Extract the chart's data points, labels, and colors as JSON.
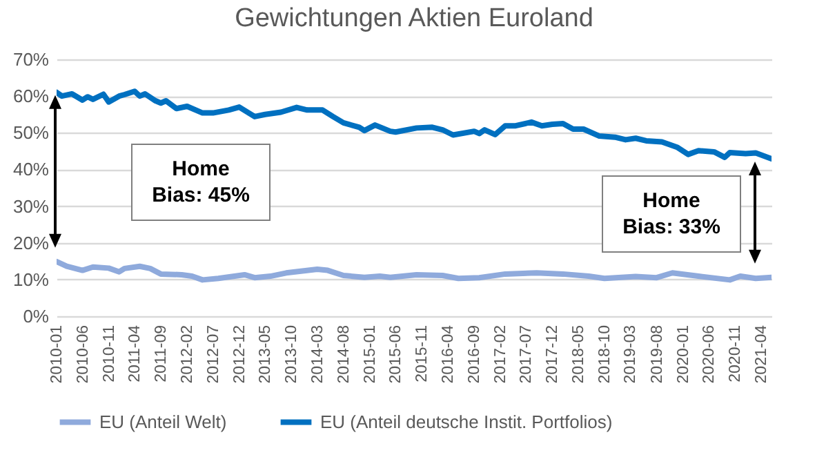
{
  "chart_data": {
    "type": "line",
    "title": "Gewichtungen Aktien Euroland",
    "xlim": [
      "2010-01",
      "2021-06"
    ],
    "xticks": [
      "2010-01",
      "2010-06",
      "2010-11",
      "2011-04",
      "2011-09",
      "2012-02",
      "2012-07",
      "2012-12",
      "2013-05",
      "2013-10",
      "2014-03",
      "2014-08",
      "2015-01",
      "2015-06",
      "2015-11",
      "2016-04",
      "2016-09",
      "2017-02",
      "2017-07",
      "2017-12",
      "2018-05",
      "2018-10",
      "2019-03",
      "2019-08",
      "2020-01",
      "2020-06",
      "2020-11",
      "2021-04"
    ],
    "ylim": [
      0,
      70
    ],
    "yticks": [
      {
        "value": 0,
        "label": "0%"
      },
      {
        "value": 10,
        "label": "10%"
      },
      {
        "value": 20,
        "label": "20%"
      },
      {
        "value": 30,
        "label": "30%"
      },
      {
        "value": 40,
        "label": "40%"
      },
      {
        "value": 50,
        "label": "50%"
      },
      {
        "value": 60,
        "label": "60%"
      },
      {
        "value": 70,
        "label": "70%"
      }
    ],
    "grid": "y",
    "legend": "bottom",
    "annotations": [
      "Home Bias: 45%",
      "Home Bias: 33%"
    ],
    "series": [
      {
        "name": "EU (Anteil Welt)",
        "color": "#8faadc",
        "x": [
          "2010-01",
          "2010-03",
          "2010-06",
          "2010-08",
          "2010-11",
          "2011-01",
          "2011-02",
          "2011-05",
          "2011-07",
          "2011-09",
          "2012-01",
          "2012-03",
          "2012-05",
          "2012-08",
          "2013-01",
          "2013-03",
          "2013-06",
          "2013-09",
          "2014-03",
          "2014-05",
          "2014-08",
          "2014-12",
          "2015-03",
          "2015-05",
          "2015-10",
          "2016-03",
          "2016-06",
          "2016-10",
          "2017-03",
          "2017-09",
          "2018-02",
          "2018-07",
          "2018-10",
          "2019-04",
          "2019-08",
          "2019-11",
          "2020-04",
          "2020-10",
          "2020-12",
          "2021-03",
          "2021-06"
        ],
        "values": [
          14.9,
          13.6,
          12.5,
          13.4,
          13.1,
          12.1,
          13,
          13.6,
          13,
          11.5,
          11.3,
          10.9,
          9.9,
          10.3,
          11.3,
          10.5,
          10.9,
          11.8,
          12.8,
          12.5,
          11.1,
          10.6,
          10.9,
          10.6,
          11.3,
          11.1,
          10.3,
          10.5,
          11.5,
          11.8,
          11.5,
          10.9,
          10.3,
          10.8,
          10.5,
          11.8,
          10.9,
          9.9,
          10.9,
          10.3,
          10.6
        ]
      },
      {
        "name": "EU (Anteil deutsche Instit. Portfolios)",
        "color": "#0070c0",
        "x": [
          "2010-01",
          "2010-02",
          "2010-04",
          "2010-06",
          "2010-07",
          "2010-08",
          "2010-10",
          "2010-11",
          "2011-01",
          "2011-02",
          "2011-04",
          "2011-05",
          "2011-06",
          "2011-08",
          "2011-09",
          "2011-10",
          "2011-12",
          "2012-02",
          "2012-05",
          "2012-07",
          "2012-10",
          "2012-12",
          "2013-03",
          "2013-05",
          "2013-08",
          "2013-11",
          "2014-01",
          "2014-04",
          "2014-06",
          "2014-08",
          "2014-11",
          "2014-12",
          "2015-02",
          "2015-05",
          "2015-06",
          "2015-10",
          "2016-01",
          "2016-03",
          "2016-05",
          "2016-09",
          "2016-10",
          "2016-11",
          "2017-01",
          "2017-03",
          "2017-05",
          "2017-08",
          "2017-10",
          "2017-12",
          "2018-02",
          "2018-04",
          "2018-06",
          "2018-09",
          "2018-12",
          "2019-02",
          "2019-04",
          "2019-06",
          "2019-09",
          "2019-12",
          "2020-02",
          "2020-04",
          "2020-07",
          "2020-09",
          "2020-10",
          "2021-01",
          "2021-03",
          "2021-06"
        ],
        "values": [
          61,
          60,
          60.6,
          58.9,
          59.8,
          59.1,
          60.5,
          58.4,
          60,
          60.4,
          61.3,
          60,
          60.6,
          58.7,
          58.1,
          58.7,
          56.6,
          57.2,
          55.4,
          55.4,
          56.2,
          57,
          54.4,
          55,
          55.6,
          56.9,
          56.2,
          56.2,
          54.4,
          52.7,
          51.5,
          50.6,
          52.1,
          50.4,
          50.2,
          51.3,
          51.5,
          50.8,
          49.4,
          50.4,
          49.8,
          50.8,
          49.5,
          51.9,
          51.9,
          52.9,
          51.9,
          52.3,
          52.5,
          51,
          51,
          49.1,
          48.8,
          48.1,
          48.5,
          47.8,
          47.5,
          46,
          44.1,
          45.1,
          44.8,
          43.3,
          44.6,
          44.3,
          44.5,
          42.9
        ]
      }
    ]
  }
}
